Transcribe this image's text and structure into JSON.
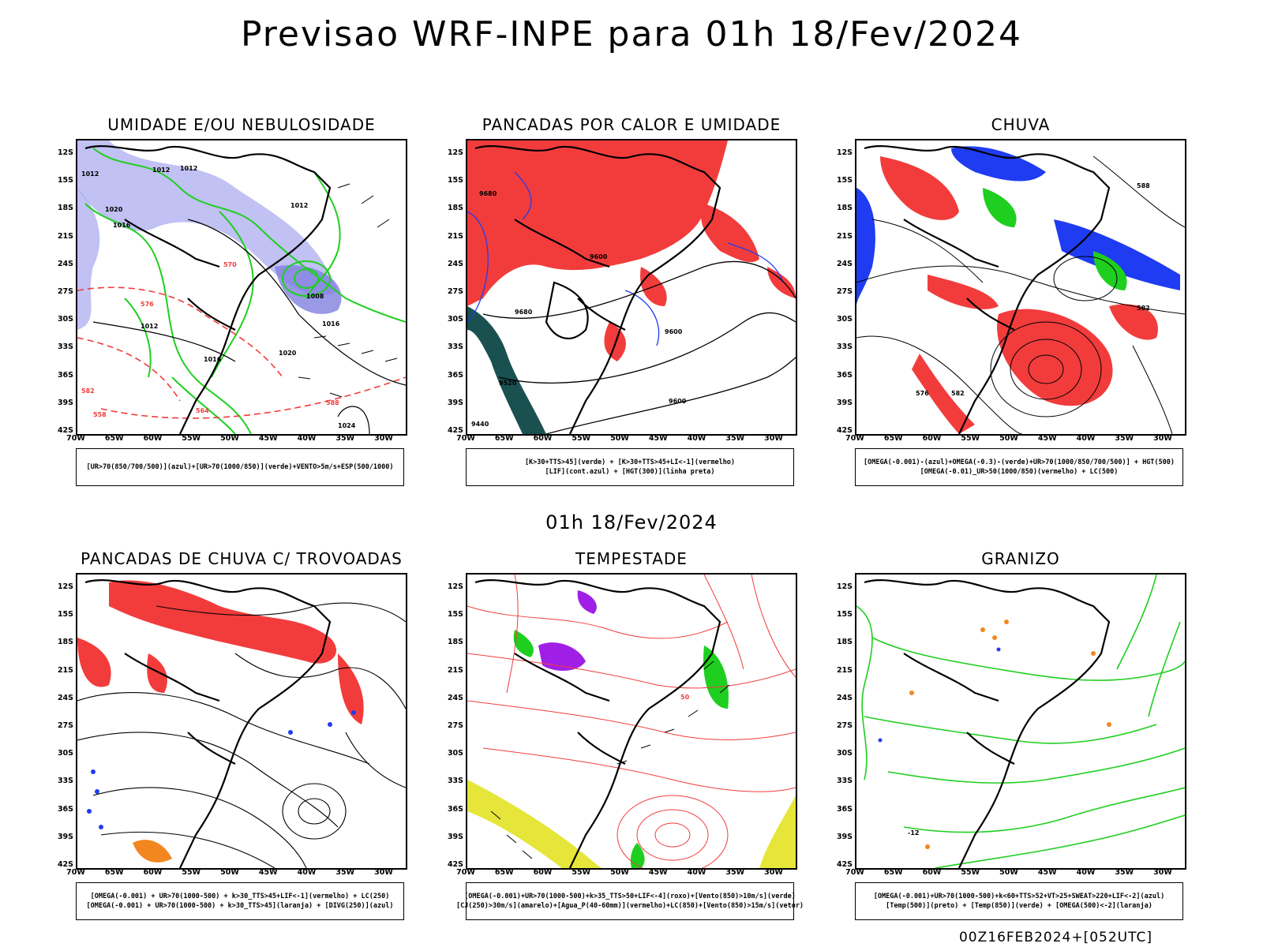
{
  "main_title": "Previsao WRF-INPE  para 01h 18/Fev/2024",
  "subtitle": "01h 18/Fev/2024",
  "footer": "00Z16FEB2024+[052UTC]",
  "lat_labels": [
    "12S",
    "15S",
    "18S",
    "21S",
    "24S",
    "27S",
    "30S",
    "33S",
    "36S",
    "39S",
    "42S"
  ],
  "lon_labels": [
    "70W",
    "65W",
    "60W",
    "55W",
    "50W",
    "45W",
    "40W",
    "35W",
    "30W"
  ],
  "colors": {
    "red": "#f23c3c",
    "green": "#1fcf1f",
    "blue": "#1f3cf2",
    "lavender": "#a7a7ee",
    "darkteal": "#1a5050",
    "yellow": "#e6e63a",
    "orange": "#f2871f",
    "purple": "#a01fe6"
  },
  "panels": [
    {
      "title": "UMIDADE E/OU NEBULOSIDADE",
      "legend": [
        "[UR>70(850/700/500)](azul)+[UR>70(1000/850)](verde)+VENTO>5m/s+ESP(500/1000)"
      ],
      "contour_labels": [
        "1012",
        "1012",
        "1012",
        "1012",
        "1016",
        "1020",
        "1008",
        "1016",
        "1012",
        "1016",
        "1020",
        "1024",
        "576",
        "570",
        "564",
        "558",
        "588",
        "582"
      ]
    },
    {
      "title": "PANCADAS POR CALOR E UMIDADE",
      "legend": [
        "[K>30+TTS>45](verde) + [K>30+TTS>45+LI<-1](vermelho)",
        "[LIF](cont.azul) + [HGT(300)](linha preta)"
      ],
      "contour_labels": [
        "9680",
        "9600",
        "9680",
        "9600",
        "9520",
        "9600",
        "9440"
      ]
    },
    {
      "title": "CHUVA",
      "legend": [
        "[OMEGA(-0.001)-(azul)+OMEGA(-0.3)-(verde)+UR>70(1000/850/700/500)] + HGT(500)",
        "[OMEGA(-0.01)_UR>50(1000/850)(vermelho) + LC(500)"
      ],
      "contour_labels": [
        "588",
        "582",
        "576",
        "582"
      ]
    },
    {
      "title": "PANCADAS DE CHUVA C/ TROVOADAS",
      "legend": [
        "[OMEGA(-0.001) + UR>70(1000-500) + k>30_TTS>45+LIF<-1](vermelho) + LC(250)",
        "[OMEGA(-0.001) + UR>70(1000-500) + k>30_TTS>45](laranja) + [DIVG(250)](azul)"
      ],
      "contour_labels": []
    },
    {
      "title": "TEMPESTADE",
      "legend": [
        "[OMEGA(-0.001)+UR>70(1000-500)+k>35_TTS>50+LIF<-4](roxo)+[Vento(850)>10m/s](verde)",
        "[CJ(250)>30m/s](amarelo)+[Agua_P(40-60mm)](vermelho)+LC(850)+[Vento(850)>15m/s](vetor)"
      ],
      "contour_labels": [
        "50"
      ]
    },
    {
      "title": "GRANIZO",
      "legend": [
        "[OMEGA(-0.001)+UR>70(1000-500)+k<60+TTS>52+VT>25+SWEAT>220+LIF<-2](azul)",
        "[Temp(500)](preto) + [Temp(850)](verde) + [OMEGA(500)<-2](laranja)"
      ],
      "contour_labels": [
        "-12"
      ]
    }
  ]
}
